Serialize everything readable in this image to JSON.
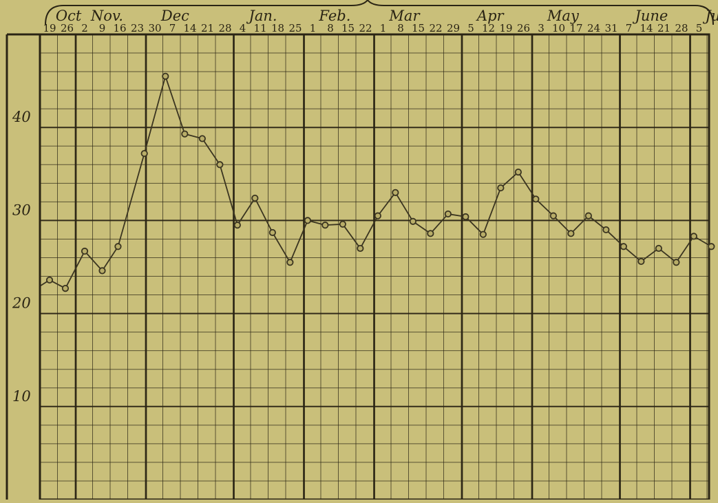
{
  "chart_data": {
    "type": "line",
    "title": "",
    "xlabel": "",
    "ylabel": "",
    "ylim": [
      0,
      50
    ],
    "y_ticks": [
      10,
      20,
      30,
      40
    ],
    "grid": true,
    "legend": "none",
    "months": [
      {
        "label": "Oct",
        "start_index": 0
      },
      {
        "label": "Nov.",
        "start_index": 2
      },
      {
        "label": "Dec",
        "start_index": 6
      },
      {
        "label": "Jan.",
        "start_index": 11
      },
      {
        "label": "Feb.",
        "start_index": 15
      },
      {
        "label": "Mar",
        "start_index": 19
      },
      {
        "label": "Apr",
        "start_index": 24
      },
      {
        "label": "May",
        "start_index": 28
      },
      {
        "label": "June",
        "start_index": 33
      },
      {
        "label": "July",
        "start_index": 37
      }
    ],
    "x_labels": [
      "19",
      "26",
      "2",
      "9",
      "16",
      "23",
      "30",
      "7",
      "14",
      "21",
      "28",
      "4",
      "11",
      "18",
      "25",
      "1",
      "8",
      "15",
      "22",
      "1",
      "8",
      "15",
      "22",
      "29",
      "5",
      "12",
      "19",
      "26",
      "3",
      "10",
      "17",
      "24",
      "31",
      "7",
      "14",
      "21",
      "28",
      "5"
    ],
    "series": [
      {
        "values": [
          {
            "x": -0.5,
            "y": 23.0
          },
          {
            "x": 0,
            "y": 23.6
          },
          {
            "x": 0.9,
            "y": 22.7
          },
          {
            "x": 2,
            "y": 26.7
          },
          {
            "x": 3,
            "y": 24.6
          },
          {
            "x": 3.9,
            "y": 27.2
          },
          {
            "x": 5.4,
            "y": 37.2
          },
          {
            "x": 6.6,
            "y": 45.5
          },
          {
            "x": 7.7,
            "y": 39.3
          },
          {
            "x": 8.7,
            "y": 38.8
          },
          {
            "x": 9.7,
            "y": 36.0
          },
          {
            "x": 10.7,
            "y": 29.5
          },
          {
            "x": 11.7,
            "y": 32.4
          },
          {
            "x": 12.7,
            "y": 28.7
          },
          {
            "x": 13.7,
            "y": 25.5
          },
          {
            "x": 14.7,
            "y": 30.0
          },
          {
            "x": 15.7,
            "y": 29.5
          },
          {
            "x": 16.7,
            "y": 29.6
          },
          {
            "x": 17.7,
            "y": 27.0
          },
          {
            "x": 18.7,
            "y": 30.5
          },
          {
            "x": 19.7,
            "y": 33.0
          },
          {
            "x": 20.7,
            "y": 29.9
          },
          {
            "x": 21.7,
            "y": 28.6
          },
          {
            "x": 22.7,
            "y": 30.7
          },
          {
            "x": 23.7,
            "y": 30.4
          },
          {
            "x": 24.7,
            "y": 28.5
          },
          {
            "x": 25.7,
            "y": 33.5
          },
          {
            "x": 26.7,
            "y": 35.2
          },
          {
            "x": 27.7,
            "y": 32.3
          },
          {
            "x": 28.7,
            "y": 30.5
          },
          {
            "x": 29.7,
            "y": 28.6
          },
          {
            "x": 30.7,
            "y": 30.5
          },
          {
            "x": 31.7,
            "y": 29.0
          },
          {
            "x": 32.7,
            "y": 27.2
          },
          {
            "x": 33.7,
            "y": 25.6
          },
          {
            "x": 34.7,
            "y": 27.0
          },
          {
            "x": 35.7,
            "y": 25.5
          },
          {
            "x": 36.7,
            "y": 28.3
          },
          {
            "x": 37.7,
            "y": 27.2
          }
        ]
      }
    ],
    "colors": {
      "paper": "#c9bf7a",
      "ink": "#2a2414",
      "line": "#3a3420",
      "marker_fill": "#b8ad68"
    }
  }
}
